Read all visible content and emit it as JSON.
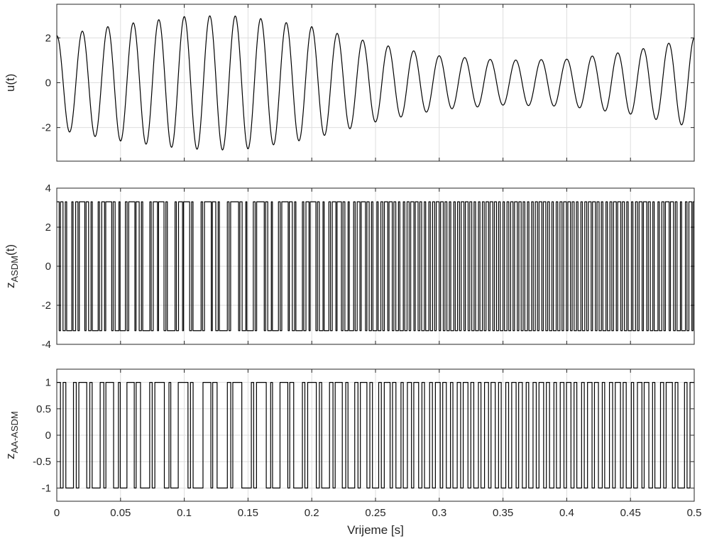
{
  "chart_data": [
    {
      "type": "line",
      "ylabel": "u(t)",
      "xlim": [
        0,
        0.5
      ],
      "ylim": [
        -3.5,
        3.5
      ],
      "yticks": [
        -2,
        0,
        2
      ],
      "grid": true,
      "signal": {
        "form": "sinusoid",
        "frequency_hz": 50,
        "envelope_t": [
          0,
          0.05,
          0.1,
          0.13,
          0.15,
          0.2,
          0.25,
          0.3,
          0.35,
          0.4,
          0.45,
          0.5
        ],
        "envelope_amplitude": [
          2.1,
          2.6,
          2.95,
          3.0,
          2.95,
          2.5,
          1.75,
          1.2,
          1.0,
          1.05,
          1.4,
          2.0
        ]
      }
    },
    {
      "type": "line",
      "ylabel_main": "z",
      "ylabel_sub": "ASDM",
      "ylabel_suffix": "(t)",
      "xlim": [
        0,
        0.5
      ],
      "ylim": [
        -4,
        4
      ],
      "yticks": [
        -4,
        -2,
        0,
        2,
        4
      ],
      "grid": true,
      "signal": {
        "form": "binary",
        "levels": [
          -3.3,
          3.3
        ],
        "description_periods": "pulse train whose switching rate rises as |u(t)| decreases"
      }
    },
    {
      "type": "line",
      "ylabel_main": "z",
      "ylabel_sub": "AA-ASDM",
      "xlabel": "Vrijeme [s]",
      "xlim": [
        0,
        0.5
      ],
      "ylim": [
        -1.25,
        1.25
      ],
      "yticks": [
        -1,
        -0.5,
        0,
        0.5,
        1
      ],
      "xticks": [
        0,
        0.05,
        0.1,
        0.15,
        0.2,
        0.25,
        0.3,
        0.35,
        0.4,
        0.45,
        0.5
      ],
      "grid": true,
      "signal": {
        "form": "binary",
        "levels": [
          -1,
          1
        ]
      }
    }
  ],
  "tick_labels": {
    "x": [
      "0",
      "0.05",
      "0.1",
      "0.15",
      "0.2",
      "0.25",
      "0.3",
      "0.35",
      "0.4",
      "0.45",
      "0.5"
    ],
    "y1": [
      "-2",
      "0",
      "2"
    ],
    "y2": [
      "-4",
      "-2",
      "0",
      "2",
      "4"
    ],
    "y3": [
      "-1",
      "-0.5",
      "0",
      "0.5",
      "1"
    ]
  }
}
